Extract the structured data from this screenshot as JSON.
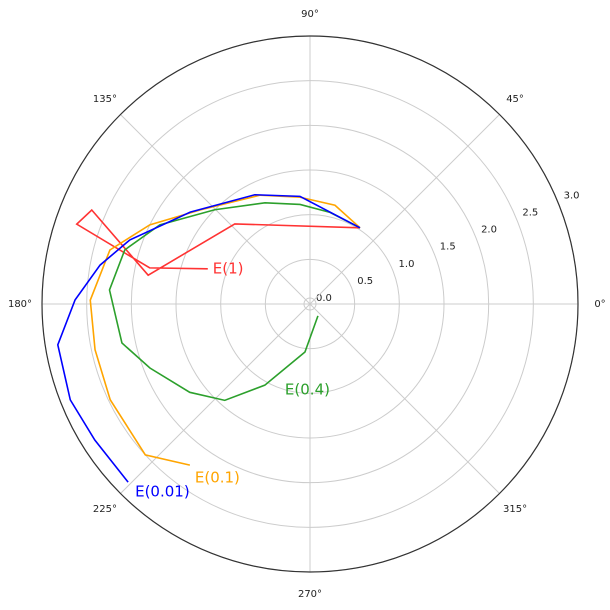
{
  "chart_data": {
    "type": "polar",
    "rlim": [
      0,
      3.0
    ],
    "rticks": [
      {
        "value": 0,
        "label": "0.0"
      },
      0.5,
      {
        "value": 1,
        "label": "1.0"
      },
      1.5,
      {
        "value": 2,
        "label": "2.0"
      },
      2.5,
      {
        "value": 3,
        "label": "3.0"
      }
    ],
    "thetaticks": [
      {
        "value": 0,
        "label": "0°"
      },
      {
        "value": 45,
        "label": "45°"
      },
      {
        "value": 90,
        "label": "90°"
      },
      {
        "value": 135,
        "label": "135°"
      },
      {
        "value": 180,
        "label": "180°"
      },
      {
        "value": 225,
        "label": "225°"
      },
      {
        "value": 270,
        "label": "270°"
      },
      {
        "value": 315,
        "label": "315°"
      }
    ],
    "grid": true,
    "series": [
      {
        "name": "E(1)",
        "color": "#ff3333",
        "theta": [
          56.7,
          133.2,
          169.9,
          156.7,
          161.1,
          167.3,
          161
        ],
        "r": [
          1.02,
          1.23,
          1.84,
          2.66,
          2.76,
          1.84,
          1.21
        ]
      },
      {
        "name": "E(0.4)",
        "color": "#2ca02c",
        "theta": [
          56.7,
          77.7,
          95.7,
          114,
          135.3,
          152.2,
          163.7,
          176,
          191.7,
          201.8,
          216.3,
          228.5,
          240.9,
          264,
          303.7
        ],
        "r": [
          1.02,
          1.05,
          1.12,
          1.24,
          1.5,
          1.9,
          2.16,
          2.25,
          2.15,
          1.93,
          1.67,
          1.44,
          1.04,
          0.54,
          0.16
        ]
      },
      {
        "name": "E(0.1)",
        "color": "orange",
        "theta": [
          56.7,
          75.8,
          95.3,
          114.6,
          139.5,
          153.7,
          164.9,
          179,
          192,
          205.6,
          222.5,
          233.3
        ],
        "r": [
          1.02,
          1.14,
          1.2,
          1.34,
          1.62,
          2.0,
          2.32,
          2.46,
          2.46,
          2.48,
          2.5,
          2.25
        ]
      },
      {
        "name": "E(0.01)",
        "color": "blue",
        "theta": [
          56.7,
          95.3,
          116.8,
          142.5,
          160.4,
          169.5,
          179,
          189.2,
          201.8,
          212.3,
          224.4
        ],
        "r": [
          1.02,
          1.21,
          1.37,
          1.69,
          2.14,
          2.39,
          2.63,
          2.86,
          2.89,
          2.85,
          2.85
        ]
      }
    ]
  }
}
